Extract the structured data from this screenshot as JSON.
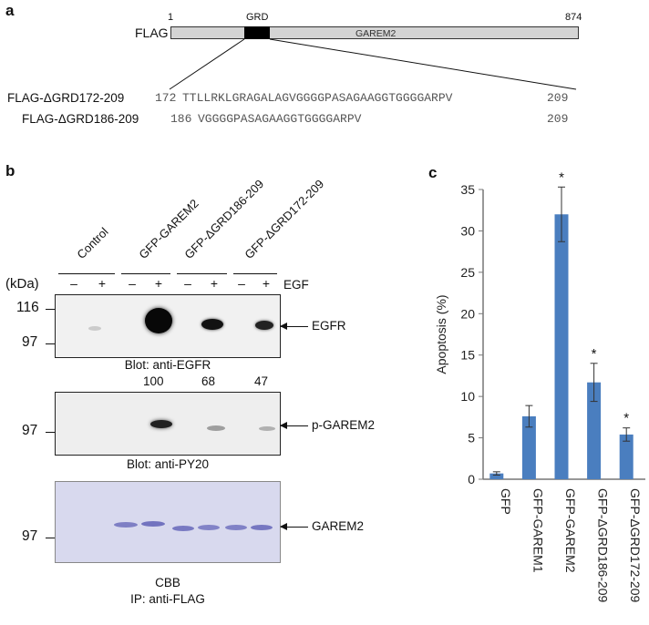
{
  "panel_a": {
    "label": "a",
    "construct_tag": "FLAG",
    "start_pos": "1",
    "end_pos": "874",
    "domain_label": "GRD",
    "protein_label": "GAREM2",
    "deletions": [
      {
        "name": "FLAG-ΔGRD172-209",
        "start": "172",
        "sequence": "TTLLRKLGRAGALAGVGGGGPASAGAAGGTGGGGARPV",
        "end": "209"
      },
      {
        "name": "FLAG-ΔGRD186-209",
        "start": "186",
        "sequence": "VGGGGPASAGAAGGTGGGGARPV",
        "end": "209"
      }
    ]
  },
  "panel_b": {
    "label": "b",
    "lanes": [
      "Control",
      "GFP-GAREM2",
      "GFP-ΔGRD186-209",
      "GFP-ΔGRD172-209"
    ],
    "kda_label": "(kDa)",
    "egf_label": "EGF",
    "egf_signs": [
      "–",
      "+",
      "–",
      "+",
      "–",
      "+",
      "–",
      "+"
    ],
    "blot1": {
      "markers": [
        "116",
        "97"
      ],
      "target": "EGFR",
      "caption": "Blot: anti-EGFR"
    },
    "blot2": {
      "markers": [
        "97"
      ],
      "quant": [
        "100",
        "68",
        "47"
      ],
      "target": "p-GAREM2",
      "caption": "Blot: anti-PY20"
    },
    "blot3": {
      "markers": [
        "97"
      ],
      "target": "GAREM2",
      "caption1": "CBB",
      "caption2": "IP: anti-FLAG"
    }
  },
  "panel_c": {
    "label": "c",
    "chart_data": {
      "type": "bar",
      "categories": [
        "GFP",
        "GFP-GAREM1",
        "GFP-GAREM2",
        "GFP-ΔGRD186-209",
        "GFP-ΔGRD172-209"
      ],
      "values": [
        0.7,
        7.6,
        32.0,
        11.7,
        5.4
      ],
      "errors": [
        0.2,
        1.3,
        3.3,
        2.3,
        0.8
      ],
      "significance": [
        "",
        "",
        "*",
        "*",
        "*"
      ],
      "ylabel": "Apoptosis (%)",
      "ylim": [
        0,
        35
      ],
      "yticks": [
        "0",
        "5",
        "10",
        "15",
        "20",
        "25",
        "30",
        "35"
      ],
      "bar_color": "#4a7ebf"
    }
  }
}
